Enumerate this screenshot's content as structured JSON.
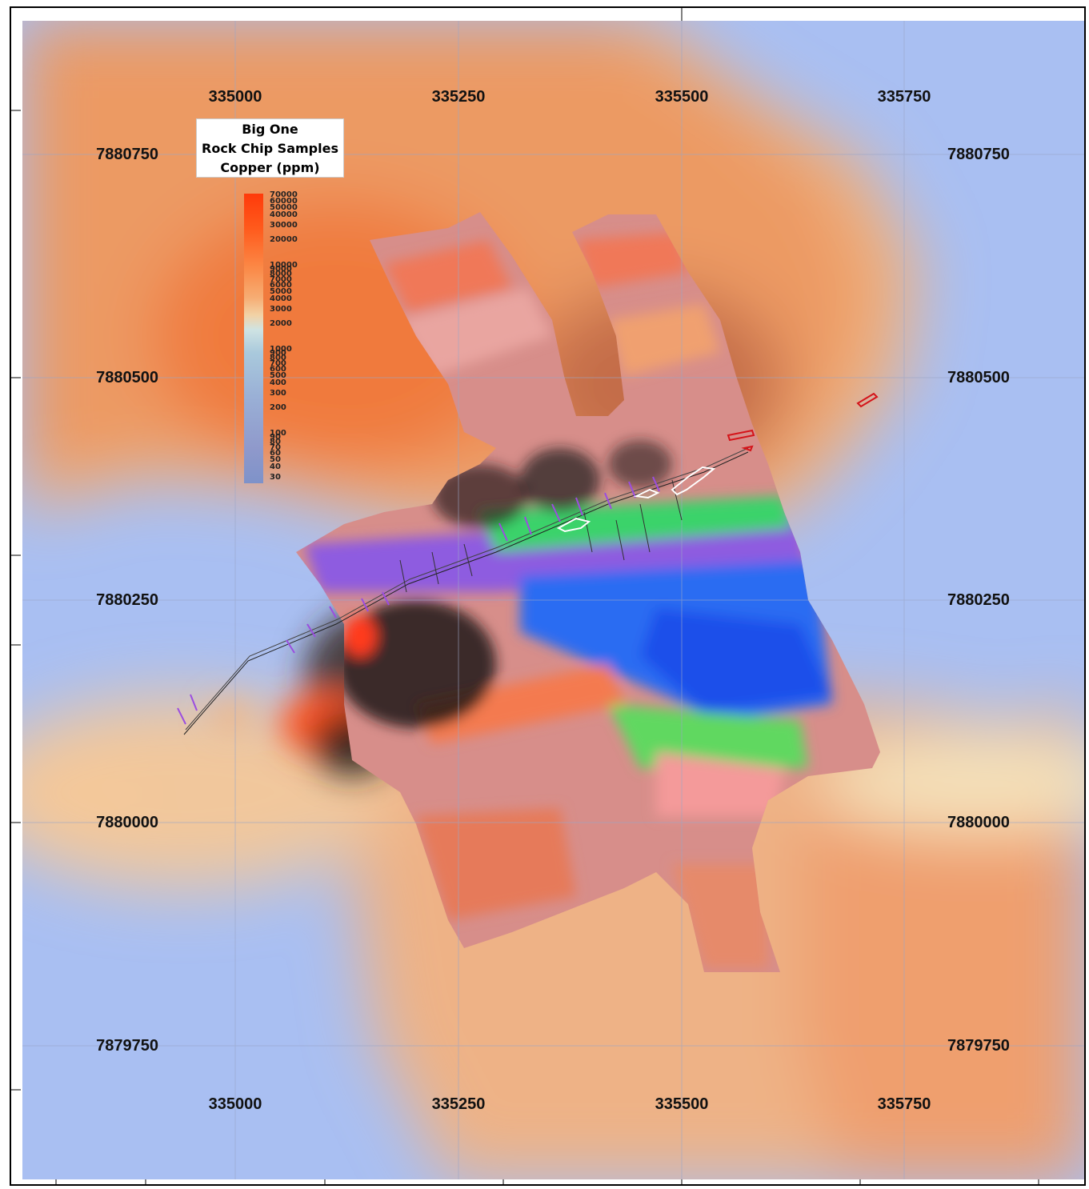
{
  "legend": {
    "title_lines": [
      "Big One",
      "Rock Chip Samples",
      "Copper (ppm)"
    ],
    "ticks": [
      "70000",
      "60000",
      "50000",
      "40000",
      "30000",
      "20000",
      "10000",
      "9000",
      "8000",
      "7000",
      "6000",
      "5000",
      "4000",
      "3000",
      "2000",
      "1000",
      "900",
      "800",
      "700",
      "600",
      "500",
      "400",
      "300",
      "200",
      "100",
      "90",
      "80",
      "70",
      "60",
      "50",
      "40",
      "30"
    ]
  },
  "grid": {
    "eastings": [
      "335000",
      "335250",
      "335500",
      "335750"
    ],
    "northings": [
      "7880750",
      "7880500",
      "7880250",
      "7880000",
      "7879750"
    ]
  },
  "colors": {
    "high": "#ff3a0a",
    "mid": "#f2d2a6",
    "low": "#a9bff2",
    "anomaly_outline": "#d4141a",
    "drillhole": "#9b4de0"
  }
}
